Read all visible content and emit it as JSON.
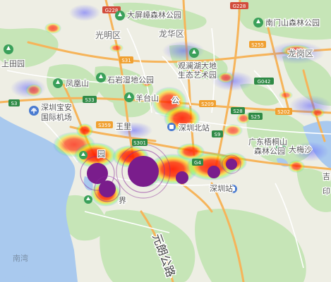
{
  "colors": {
    "water": "#a9c9ee",
    "land": "#eeeee4",
    "park": "#c6e5b7",
    "highway": "#f6b45a",
    "major_road": "#ffffff",
    "national_road_shield": "#d24c3c",
    "expressway_shield": "#2f8a46",
    "provincial_shield": "#f0a030",
    "heat_low": "#3b3bff",
    "heat_mid": "#ffe000",
    "heat_high": "#ff2200",
    "bubble": "#7a1d8c"
  },
  "labels": {
    "guangming": "光明区",
    "longhua": "龙华区",
    "longgang": "龙岗区",
    "shangtian_park": "上田园",
    "fenghuang_shan": "凤凰山",
    "shiyan_wetland": "石岩湿地公园",
    "yangtai_shan": "羊台山",
    "shenzhen_baoan_airport_1": "深圳宝安",
    "shenzhen_baoan_airport_2": "国际机场",
    "guanlan_lake_1": "观澜湖大地",
    "guanlan_lake_2": "生态艺术园",
    "daping_zhang_park": "大屏嶂森林公园",
    "nanmen_shan_park": "南门山森林公园",
    "tanglang_shan": "塘朗山",
    "shenzhen_north": "深圳北站",
    "guangdong_wutong_1": "广东梧桐山",
    "guangdong_wutong_2": "森林公园",
    "dameisha": "大梅沙",
    "shenzhen_station": "深圳站",
    "nanwan": "南湾",
    "yuan_partial": "园",
    "jie_partial": "界",
    "wangli": "王里",
    "gong": "公",
    "ji_partial": "吉",
    "yin_partial": "印",
    "yuanlang_road": "元朗公路"
  },
  "shields": {
    "g228_top": "G228",
    "g228_right": "G228",
    "s31": "S31",
    "s3": "S3",
    "s33": "S33",
    "s359": "S359",
    "s209": "S209",
    "s301": "S301",
    "s28": "S28",
    "s25": "S25",
    "s202": "S202",
    "s255": "S255",
    "g0422": "G042",
    "g4": "G4",
    "s9": "S9"
  },
  "icons": {
    "airport": "airplane-icon",
    "park": "tree-icon",
    "station": "train-icon"
  },
  "heatmap": {
    "blobs": [
      {
        "id": "a1",
        "intensity": 0.55
      },
      {
        "id": "a2",
        "intensity": 0.45
      },
      {
        "id": "a3",
        "intensity": 0.7
      },
      {
        "id": "a4",
        "intensity": 0.35
      },
      {
        "id": "a5",
        "intensity": 0.4
      },
      {
        "id": "a6",
        "intensity": 0.5
      },
      {
        "id": "a7",
        "intensity": 0.85
      },
      {
        "id": "a8",
        "intensity": 0.45
      },
      {
        "id": "a9",
        "intensity": 0.55
      },
      {
        "id": "a10",
        "intensity": 0.6
      },
      {
        "id": "a11",
        "intensity": 0.9
      },
      {
        "id": "a12",
        "intensity": 0.95
      },
      {
        "id": "a13",
        "intensity": 0.9
      },
      {
        "id": "a14",
        "intensity": 0.85
      },
      {
        "id": "a15",
        "intensity": 0.9
      },
      {
        "id": "a16",
        "intensity": 0.8
      },
      {
        "id": "a17",
        "intensity": 0.75
      },
      {
        "id": "a18",
        "intensity": 0.85
      },
      {
        "id": "a19",
        "intensity": 0.8
      },
      {
        "id": "a20",
        "intensity": 0.6
      },
      {
        "id": "a21",
        "intensity": 0.5
      },
      {
        "id": "a22",
        "intensity": 0.45
      },
      {
        "id": "a23",
        "intensity": 0.35
      },
      {
        "id": "a24",
        "intensity": 0.5
      }
    ],
    "bubbles": [
      {
        "id": "b1",
        "size": "large"
      },
      {
        "id": "b2",
        "size": "medium"
      },
      {
        "id": "b3",
        "size": "medium"
      },
      {
        "id": "b4",
        "size": "small"
      },
      {
        "id": "b5",
        "size": "small"
      },
      {
        "id": "b6",
        "size": "small"
      }
    ]
  }
}
